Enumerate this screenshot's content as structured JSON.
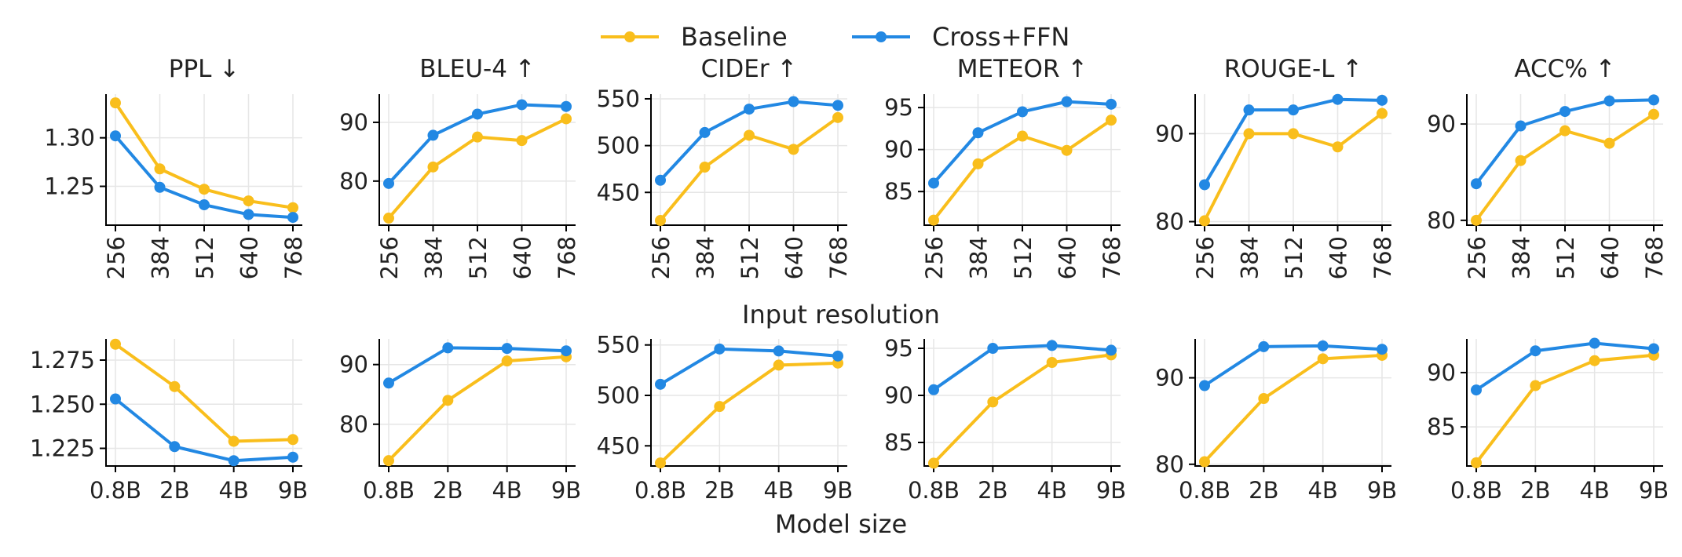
{
  "legend": {
    "items": [
      {
        "name": "Baseline",
        "color": "#F9BE1C"
      },
      {
        "name": "Cross+FFN",
        "color": "#2288E3"
      }
    ]
  },
  "row_labels": {
    "resolution": "Input resolution",
    "model_size": "Model size"
  },
  "chart_data": [
    {
      "type": "line",
      "row": "resolution",
      "title": "PPL ↓",
      "x_tick_labels": [
        "256",
        "384",
        "512",
        "640",
        "768"
      ],
      "x": [
        256,
        384,
        512,
        640,
        768
      ],
      "ylim": [
        1.21,
        1.345
      ],
      "y_ticks": [
        1.25,
        1.3
      ],
      "y_tick_labels": [
        "1.25",
        "1.30"
      ],
      "grid": true,
      "series": [
        {
          "name": "Baseline",
          "values": [
            1.336,
            1.268,
            1.247,
            1.235,
            1.228
          ]
        },
        {
          "name": "Cross+FFN",
          "values": [
            1.302,
            1.249,
            1.231,
            1.221,
            1.218
          ]
        }
      ]
    },
    {
      "type": "line",
      "row": "resolution",
      "title": "BLEU-4 ↑",
      "x_tick_labels": [
        "256",
        "384",
        "512",
        "640",
        "768"
      ],
      "x": [
        256,
        384,
        512,
        640,
        768
      ],
      "ylim": [
        72.5,
        94.8
      ],
      "y_ticks": [
        80,
        90
      ],
      "y_tick_labels": [
        "80",
        "90"
      ],
      "grid": true,
      "series": [
        {
          "name": "Baseline",
          "values": [
            73.7,
            82.4,
            87.5,
            86.9,
            90.6
          ]
        },
        {
          "name": "Cross+FFN",
          "values": [
            79.6,
            87.8,
            91.4,
            93.0,
            92.7
          ]
        }
      ]
    },
    {
      "type": "line",
      "row": "resolution",
      "title": "CIDEr ↑",
      "x_tick_labels": [
        "256",
        "384",
        "512",
        "640",
        "768"
      ],
      "x": [
        256,
        384,
        512,
        640,
        768
      ],
      "ylim": [
        415,
        555
      ],
      "y_ticks": [
        450,
        500,
        550
      ],
      "y_tick_labels": [
        "450",
        "500",
        "550"
      ],
      "grid": true,
      "series": [
        {
          "name": "Baseline",
          "values": [
            420,
            477,
            511,
            496,
            530
          ]
        },
        {
          "name": "Cross+FFN",
          "values": [
            463,
            514,
            539,
            547,
            543
          ]
        }
      ]
    },
    {
      "type": "line",
      "row": "resolution",
      "title": "METEOR ↑",
      "x_tick_labels": [
        "256",
        "384",
        "512",
        "640",
        "768"
      ],
      "x": [
        256,
        384,
        512,
        640,
        768
      ],
      "ylim": [
        81.0,
        96.6
      ],
      "y_ticks": [
        85,
        90,
        95
      ],
      "y_tick_labels": [
        "85",
        "90",
        "95"
      ],
      "grid": true,
      "series": [
        {
          "name": "Baseline",
          "values": [
            81.6,
            88.3,
            91.6,
            89.9,
            93.5
          ]
        },
        {
          "name": "Cross+FFN",
          "values": [
            86.0,
            92.0,
            94.5,
            95.7,
            95.4
          ]
        }
      ]
    },
    {
      "type": "line",
      "row": "resolution",
      "title": "ROUGE-L ↑",
      "x_tick_labels": [
        "256",
        "384",
        "512",
        "640",
        "768"
      ],
      "x": [
        256,
        384,
        512,
        640,
        768
      ],
      "ylim": [
        79.6,
        94.5
      ],
      "y_ticks": [
        80,
        90
      ],
      "y_tick_labels": [
        "80",
        "90"
      ],
      "grid": true,
      "series": [
        {
          "name": "Baseline",
          "values": [
            80.1,
            90.0,
            90.0,
            88.5,
            92.3
          ]
        },
        {
          "name": "Cross+FFN",
          "values": [
            84.2,
            92.7,
            92.7,
            93.9,
            93.8
          ]
        }
      ]
    },
    {
      "type": "line",
      "row": "resolution",
      "title": "ACC% ↑",
      "x_tick_labels": [
        "256",
        "384",
        "512",
        "640",
        "768"
      ],
      "x": [
        256,
        384,
        512,
        640,
        768
      ],
      "ylim": [
        79.5,
        93.1
      ],
      "y_ticks": [
        80,
        90
      ],
      "y_tick_labels": [
        "80",
        "90"
      ],
      "grid": true,
      "series": [
        {
          "name": "Baseline",
          "values": [
            80.0,
            86.2,
            89.3,
            88.0,
            91.0
          ]
        },
        {
          "name": "Cross+FFN",
          "values": [
            83.8,
            89.8,
            91.3,
            92.4,
            92.5
          ]
        }
      ]
    },
    {
      "type": "line",
      "row": "model_size",
      "title": "",
      "x_tick_labels": [
        "0.8B",
        "2B",
        "4B",
        "9B"
      ],
      "x": [
        0,
        1,
        2,
        3
      ],
      "ylim": [
        1.215,
        1.287
      ],
      "y_ticks": [
        1.225,
        1.25,
        1.275
      ],
      "y_tick_labels": [
        "1.225",
        "1.250",
        "1.275"
      ],
      "grid": true,
      "series": [
        {
          "name": "Baseline",
          "values": [
            1.284,
            1.26,
            1.229,
            1.23
          ]
        },
        {
          "name": "Cross+FFN",
          "values": [
            1.253,
            1.226,
            1.218,
            1.22
          ]
        }
      ]
    },
    {
      "type": "line",
      "row": "model_size",
      "title": "",
      "x_tick_labels": [
        "0.8B",
        "2B",
        "4B",
        "9B"
      ],
      "x": [
        0,
        1,
        2,
        3
      ],
      "ylim": [
        73.0,
        94.3
      ],
      "y_ticks": [
        80,
        90
      ],
      "y_tick_labels": [
        "80",
        "90"
      ],
      "grid": true,
      "series": [
        {
          "name": "Baseline",
          "values": [
            73.9,
            84.0,
            90.6,
            91.3
          ]
        },
        {
          "name": "Cross+FFN",
          "values": [
            86.9,
            92.8,
            92.7,
            92.3
          ]
        }
      ]
    },
    {
      "type": "line",
      "row": "model_size",
      "title": "",
      "x_tick_labels": [
        "0.8B",
        "2B",
        "4B",
        "9B"
      ],
      "x": [
        0,
        1,
        2,
        3
      ],
      "ylim": [
        430,
        556
      ],
      "y_ticks": [
        450,
        500,
        550
      ],
      "y_tick_labels": [
        "450",
        "500",
        "550"
      ],
      "grid": true,
      "series": [
        {
          "name": "Baseline",
          "values": [
            433,
            489,
            530,
            532
          ]
        },
        {
          "name": "Cross+FFN",
          "values": [
            511,
            546,
            544,
            539
          ]
        }
      ]
    },
    {
      "type": "line",
      "row": "model_size",
      "title": "",
      "x_tick_labels": [
        "0.8B",
        "2B",
        "4B",
        "9B"
      ],
      "x": [
        0,
        1,
        2,
        3
      ],
      "ylim": [
        82.5,
        96.0
      ],
      "y_ticks": [
        85,
        90,
        95
      ],
      "y_tick_labels": [
        "85",
        "90",
        "95"
      ],
      "grid": true,
      "series": [
        {
          "name": "Baseline",
          "values": [
            82.8,
            89.3,
            93.5,
            94.3
          ]
        },
        {
          "name": "Cross+FFN",
          "values": [
            90.6,
            95.0,
            95.3,
            94.8
          ]
        }
      ]
    },
    {
      "type": "line",
      "row": "model_size",
      "title": "",
      "x_tick_labels": [
        "0.8B",
        "2B",
        "4B",
        "9B"
      ],
      "x": [
        0,
        1,
        2,
        3
      ],
      "ylim": [
        79.8,
        94.5
      ],
      "y_ticks": [
        80,
        90
      ],
      "y_tick_labels": [
        "80",
        "90"
      ],
      "grid": true,
      "series": [
        {
          "name": "Baseline",
          "values": [
            80.3,
            87.6,
            92.2,
            92.6
          ]
        },
        {
          "name": "Cross+FFN",
          "values": [
            89.1,
            93.6,
            93.7,
            93.3
          ]
        }
      ]
    },
    {
      "type": "line",
      "row": "model_size",
      "title": "",
      "x_tick_labels": [
        "0.8B",
        "2B",
        "4B",
        "9B"
      ],
      "x": [
        0,
        1,
        2,
        3
      ],
      "ylim": [
        81.4,
        93.1
      ],
      "y_ticks": [
        85,
        90
      ],
      "y_tick_labels": [
        "85",
        "90"
      ],
      "grid": true,
      "series": [
        {
          "name": "Baseline",
          "values": [
            81.7,
            88.8,
            91.1,
            91.6
          ]
        },
        {
          "name": "Cross+FFN",
          "values": [
            88.4,
            92.0,
            92.7,
            92.2
          ]
        }
      ]
    }
  ]
}
